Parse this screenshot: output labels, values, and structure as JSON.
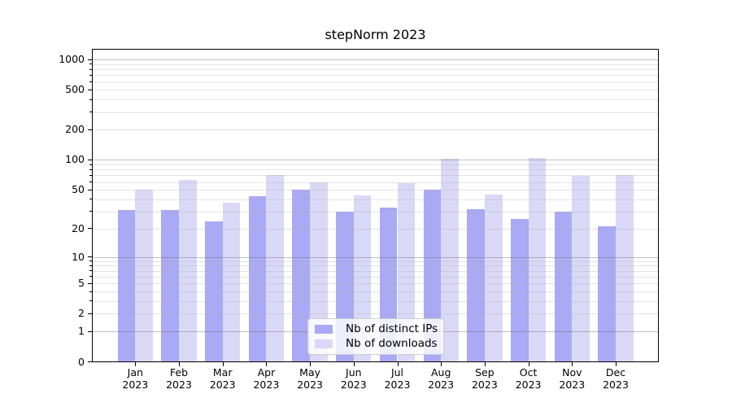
{
  "chart_data": {
    "type": "bar",
    "title": "stepNorm 2023",
    "categories": [
      "Jan 2023",
      "Feb 2023",
      "Mar 2023",
      "Apr 2023",
      "May 2023",
      "Jun 2023",
      "Jul 2023",
      "Aug 2023",
      "Sep 2023",
      "Oct 2023",
      "Nov 2023",
      "Dec 2023"
    ],
    "series": [
      {
        "name": "Nb of distinct IPs",
        "color": "#a9a9f5",
        "values": [
          31,
          31,
          24,
          43,
          50,
          30,
          33,
          50,
          32,
          25,
          30,
          21
        ]
      },
      {
        "name": "Nb of downloads",
        "color": "#d9d9f7",
        "values": [
          50,
          63,
          37,
          70,
          59,
          44,
          58,
          103,
          45,
          105,
          69,
          71
        ]
      }
    ],
    "xlabel": "",
    "ylabel": "",
    "yscale": "log1p",
    "ylim": [
      0,
      1000
    ],
    "yticks": [
      0,
      1,
      2,
      5,
      10,
      20,
      50,
      100,
      200,
      500,
      1000
    ],
    "ytick_minor": [
      3,
      4,
      6,
      7,
      8,
      9,
      30,
      40,
      60,
      70,
      80,
      90,
      300,
      400,
      600,
      700,
      800,
      900
    ],
    "decade_ticks": [
      1,
      10,
      100,
      1000
    ],
    "grid": "major+minor",
    "major_grid_color": "rgba(110,110,110,0.45)",
    "minor_grid_color": "rgba(175,175,175,0.35)",
    "legend_position": "lower center"
  }
}
